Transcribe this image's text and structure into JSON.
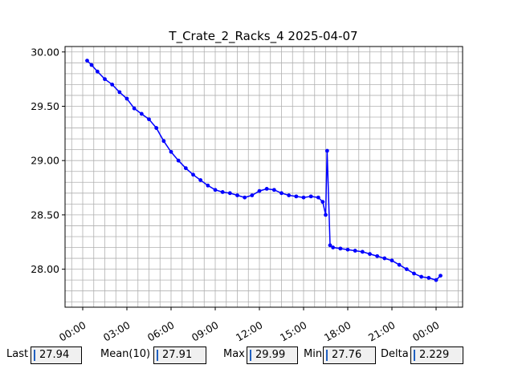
{
  "chart_data": {
    "type": "line",
    "title": "T_Crate_2_Racks_4 2025-04-07",
    "xlabel": "",
    "ylabel": "",
    "x_ticks": [
      "00:00",
      "03:00",
      "06:00",
      "09:00",
      "12:00",
      "15:00",
      "18:00",
      "21:00",
      "00:00"
    ],
    "y_ticks": [
      "28.00",
      "28.50",
      "29.00",
      "29.50",
      "30.00"
    ],
    "xlim_hours": [
      -1.2,
      25.8
    ],
    "ylim": [
      27.65,
      30.05
    ],
    "grid": true,
    "series_color": "#0000ff",
    "series": [
      {
        "x_hours": [
          0.3,
          0.6,
          1.0,
          1.5,
          2.0,
          2.5,
          3.0,
          3.5,
          4.0,
          4.5,
          5.0,
          5.5,
          6.0,
          6.5,
          7.0,
          7.5,
          8.0,
          8.5,
          9.0,
          9.5,
          10.0,
          10.5,
          11.0,
          11.5,
          12.0,
          12.5,
          13.0,
          13.5,
          14.0,
          14.5,
          15.0,
          15.5,
          16.0,
          16.3,
          16.5,
          16.6,
          16.8,
          17.0,
          17.5,
          18.0,
          18.5,
          19.0,
          19.5,
          20.0,
          20.5,
          21.0,
          21.5,
          22.0,
          22.5,
          23.0,
          23.5,
          24.0,
          24.3
        ],
        "y": [
          29.92,
          29.88,
          29.82,
          29.75,
          29.7,
          29.63,
          29.57,
          29.48,
          29.43,
          29.38,
          29.3,
          29.18,
          29.08,
          29.0,
          28.93,
          28.87,
          28.82,
          28.77,
          28.73,
          28.71,
          28.7,
          28.68,
          28.66,
          28.68,
          28.72,
          28.74,
          28.73,
          28.7,
          28.68,
          28.67,
          28.66,
          28.67,
          28.66,
          28.62,
          28.5,
          29.09,
          28.22,
          28.2,
          28.19,
          28.18,
          28.17,
          28.16,
          28.14,
          28.12,
          28.1,
          28.08,
          28.04,
          28.0,
          27.96,
          27.93,
          27.92,
          27.9,
          27.94
        ]
      }
    ]
  },
  "stats": {
    "last_label": "Last",
    "last_value": "27.94",
    "mean_label": "Mean(10)",
    "mean_value": "27.91",
    "max_label": "Max",
    "max_value": "29.99",
    "min_label": "Min",
    "min_value": "27.76",
    "delta_label": "Delta",
    "delta_value": "2.229"
  }
}
